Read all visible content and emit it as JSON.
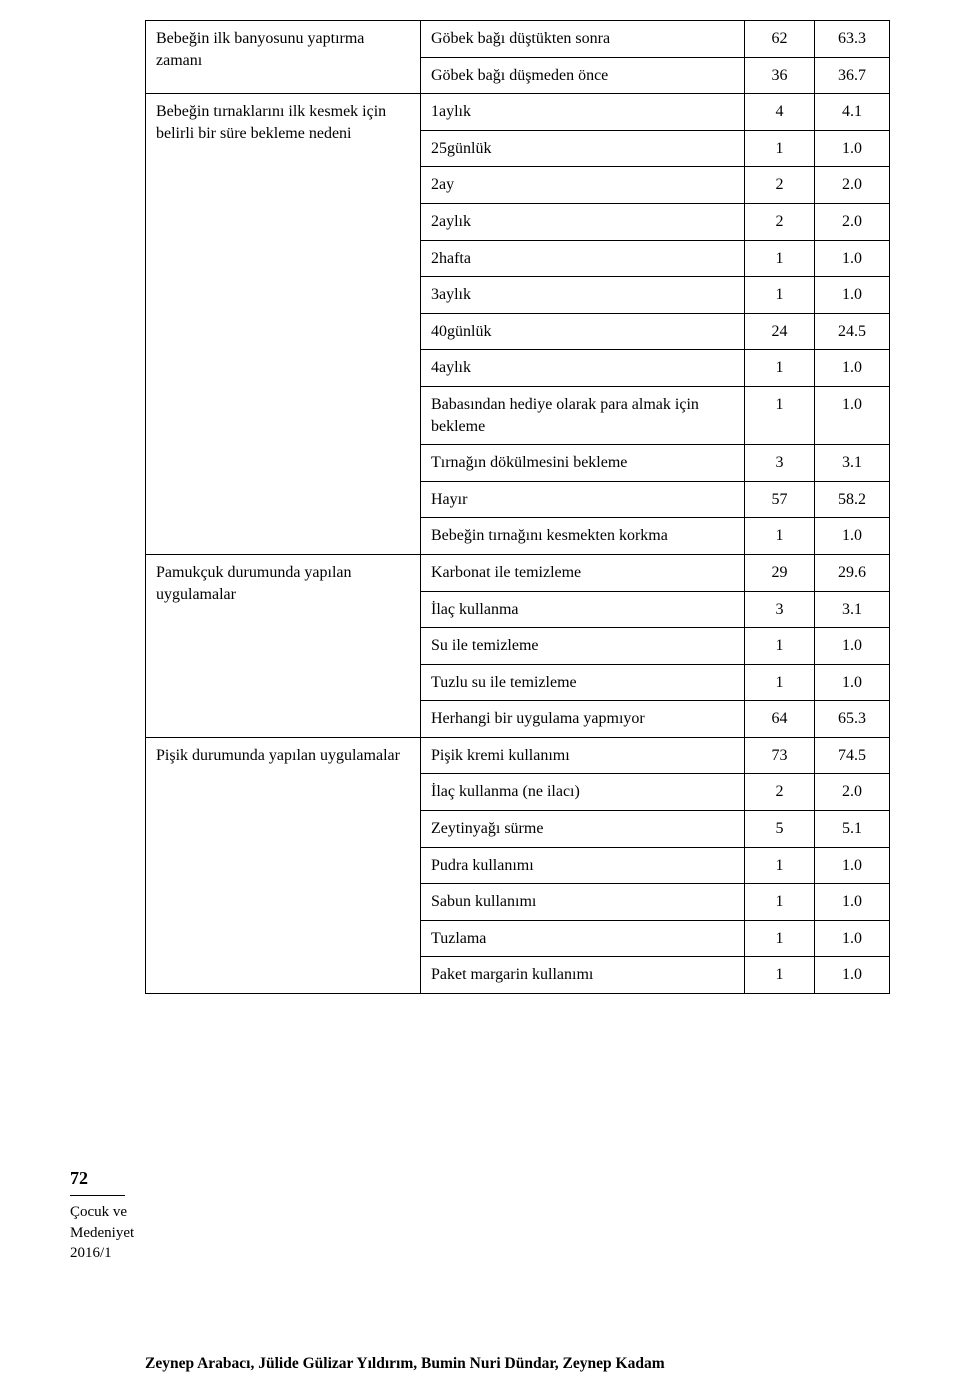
{
  "table": {
    "rows": [
      {
        "label": "Bebeğin ilk banyosunu yaptırma zamanı",
        "item": "Göbek bağı düştükten sonra",
        "n": "62",
        "p": "63.3",
        "labelRowspan": 2
      },
      {
        "item": "Göbek bağı düşmeden önce",
        "n": "36",
        "p": "36.7"
      },
      {
        "label": "Bebeğin tırnaklarını ilk kesmek için belirli bir süre bekleme nedeni",
        "item": "1aylık",
        "n": "4",
        "p": "4.1",
        "labelRowspan": 12
      },
      {
        "item": "25günlük",
        "n": "1",
        "p": "1.0"
      },
      {
        "item": "2ay",
        "n": "2",
        "p": "2.0"
      },
      {
        "item": "2aylık",
        "n": "2",
        "p": "2.0"
      },
      {
        "item": "2hafta",
        "n": "1",
        "p": "1.0"
      },
      {
        "item": "3aylık",
        "n": "1",
        "p": "1.0"
      },
      {
        "item": "40günlük",
        "n": "24",
        "p": "24.5"
      },
      {
        "item": "4aylık",
        "n": "1",
        "p": "1.0"
      },
      {
        "item": "Babasından hediye olarak para almak için bekleme",
        "n": "1",
        "p": "1.0"
      },
      {
        "item": "Tırnağın dökülmesini bekleme",
        "n": "3",
        "p": "3.1"
      },
      {
        "item": "Hayır",
        "n": "57",
        "p": "58.2"
      },
      {
        "item": "Bebeğin tırnağını kesmekten korkma",
        "n": "1",
        "p": "1.0"
      },
      {
        "label": "Pamukçuk durumunda yapılan uygulamalar",
        "item": "Karbonat ile temizleme",
        "n": "29",
        "p": "29.6",
        "labelRowspan": 5
      },
      {
        "item": "İlaç kullanma",
        "n": "3",
        "p": "3.1"
      },
      {
        "item": "Su ile temizleme",
        "n": "1",
        "p": "1.0"
      },
      {
        "item": "Tuzlu su ile temizleme",
        "n": "1",
        "p": "1.0"
      },
      {
        "item": "Herhangi bir uygulama yapmıyor",
        "n": "64",
        "p": "65.3"
      },
      {
        "label": "Pişik durumunda yapılan uygulamalar",
        "item": "Pişik kremi kullanımı",
        "n": "73",
        "p": "74.5",
        "labelRowspan": 7
      },
      {
        "item": "İlaç kullanma (ne ilacı)",
        "n": "2",
        "p": "2.0"
      },
      {
        "item": "Zeytinyağı sürme",
        "n": "5",
        "p": "5.1"
      },
      {
        "item": "Pudra kullanımı",
        "n": "1",
        "p": "1.0"
      },
      {
        "item": "Sabun kullanımı",
        "n": "1",
        "p": "1.0"
      },
      {
        "item": "Tuzlama",
        "n": "1",
        "p": "1.0"
      },
      {
        "item": "Paket margarin kullanımı",
        "n": "1",
        "p": "1.0"
      }
    ]
  },
  "footer": {
    "pageNumber": "72",
    "journalLine1": "Çocuk ve",
    "journalLine2": "Medeniyet",
    "journalLine3": "2016/1",
    "authors": "Zeynep Arabacı, Jülide Gülizar Yıldırım, Bumin Nuri Dündar, Zeynep Kadam"
  }
}
